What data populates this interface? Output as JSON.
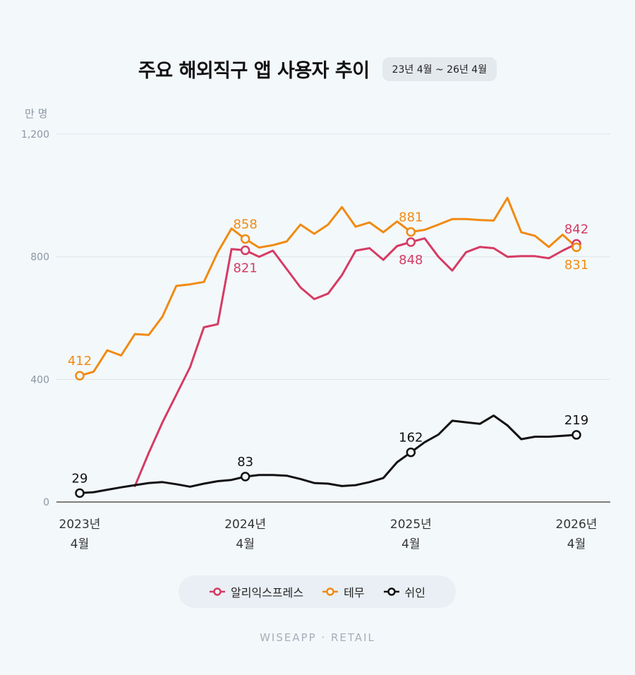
{
  "header": {
    "title": "주요 해외직구 앱 사용자 추이",
    "period": "23년 4월 ~ 26년 4월"
  },
  "footer": {
    "brand": "WISEAPP · RETAIL"
  },
  "chart_data": {
    "type": "line",
    "unit_label": "만 명",
    "ylim": [
      0,
      1200
    ],
    "yticks": [
      "0",
      "400",
      "800",
      "1,200"
    ],
    "grid": true,
    "legend_position": "bottom-center",
    "x": [
      "2023-04",
      "2023-05",
      "2023-06",
      "2023-07",
      "2023-08",
      "2023-09",
      "2023-10",
      "2023-11",
      "2023-12",
      "2024-01",
      "2024-02",
      "2024-03",
      "2024-04",
      "2024-05",
      "2024-06",
      "2024-07",
      "2024-08",
      "2024-09",
      "2024-10",
      "2024-11",
      "2024-12",
      "2025-01",
      "2025-02",
      "2025-03",
      "2025-04",
      "2025-05",
      "2025-06",
      "2025-07",
      "2025-08",
      "2025-09",
      "2025-10",
      "2025-11",
      "2025-12",
      "2026-01",
      "2026-02",
      "2026-03",
      "2026-04"
    ],
    "xtick_labels": [
      {
        "year": "2023년",
        "month": "4월",
        "index": 0
      },
      {
        "year": "2024년",
        "month": "4월",
        "index": 12
      },
      {
        "year": "2025년",
        "month": "4월",
        "index": 24
      },
      {
        "year": "2026년",
        "month": "4월",
        "index": 36
      }
    ],
    "series": [
      {
        "name": "알리익스프레스",
        "color": "#d63b63",
        "values": [
          null,
          null,
          null,
          null,
          52,
          160,
          260,
          350,
          440,
          570,
          580,
          825,
          821,
          800,
          820,
          760,
          700,
          662,
          680,
          740,
          820,
          828,
          790,
          835,
          848,
          860,
          800,
          755,
          815,
          832,
          828,
          800,
          802,
          802,
          795,
          820,
          842
        ],
        "labels": [
          {
            "index": 12,
            "text": "821",
            "pos": "below"
          },
          {
            "index": 24,
            "text": "848",
            "pos": "below"
          },
          {
            "index": 36,
            "text": "842",
            "pos": "above"
          }
        ]
      },
      {
        "name": "테무",
        "color": "#f18a12",
        "values": [
          412,
          425,
          495,
          478,
          548,
          545,
          605,
          705,
          710,
          718,
          815,
          892,
          858,
          830,
          838,
          850,
          905,
          875,
          905,
          962,
          898,
          912,
          880,
          915,
          881,
          888,
          905,
          923,
          923,
          920,
          918,
          992,
          880,
          868,
          832,
          872,
          831
        ],
        "labels": [
          {
            "index": 0,
            "text": "412",
            "pos": "above"
          },
          {
            "index": 12,
            "text": "858",
            "pos": "above"
          },
          {
            "index": 24,
            "text": "881",
            "pos": "above"
          },
          {
            "index": 36,
            "text": "831",
            "pos": "below"
          }
        ]
      },
      {
        "name": "쉬인",
        "color": "#111111",
        "values": [
          29,
          32,
          40,
          48,
          55,
          62,
          65,
          58,
          50,
          60,
          68,
          72,
          83,
          88,
          88,
          86,
          75,
          62,
          60,
          52,
          55,
          65,
          78,
          130,
          162,
          195,
          220,
          265,
          260,
          255,
          282,
          250,
          205,
          213,
          213,
          216,
          219
        ],
        "labels": [
          {
            "index": 0,
            "text": "29",
            "pos": "above"
          },
          {
            "index": 12,
            "text": "83",
            "pos": "above"
          },
          {
            "index": 24,
            "text": "162",
            "pos": "above"
          },
          {
            "index": 36,
            "text": "219",
            "pos": "above"
          }
        ]
      }
    ]
  }
}
